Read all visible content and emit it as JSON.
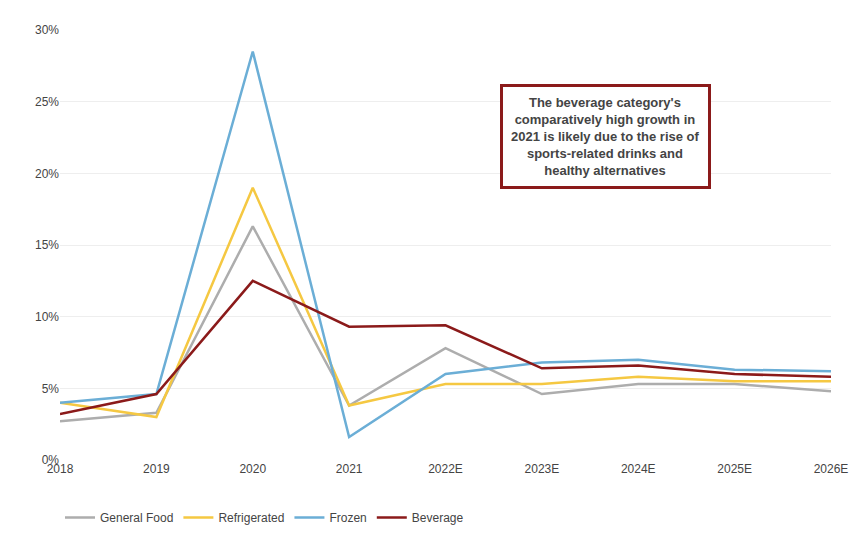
{
  "chart_data": {
    "type": "line",
    "categories": [
      "2018",
      "2019",
      "2020",
      "2021",
      "2022E",
      "2023E",
      "2024E",
      "2025E",
      "2026E"
    ],
    "series": [
      {
        "name": "General Food",
        "color": "#ADADAD",
        "values": [
          0.027,
          0.033,
          0.163,
          0.038,
          0.078,
          0.046,
          0.053,
          0.053,
          0.048
        ]
      },
      {
        "name": "Refrigerated",
        "color": "#F5C842",
        "values": [
          0.04,
          0.03,
          0.19,
          0.038,
          0.053,
          0.053,
          0.058,
          0.055,
          0.055
        ]
      },
      {
        "name": "Frozen",
        "color": "#6BAED6",
        "values": [
          0.04,
          0.046,
          0.285,
          0.016,
          0.06,
          0.068,
          0.07,
          0.063,
          0.062
        ]
      },
      {
        "name": "Beverage",
        "color": "#8B1A1A",
        "values": [
          0.032,
          0.046,
          0.125,
          0.093,
          0.094,
          0.064,
          0.066,
          0.06,
          0.058
        ]
      }
    ],
    "ylim": [
      0,
      0.3
    ],
    "yticks": [
      {
        "value": 0.0,
        "label": "0%"
      },
      {
        "value": 0.05,
        "label": "5%"
      },
      {
        "value": 0.1,
        "label": "10%"
      },
      {
        "value": 0.15,
        "label": "15%"
      },
      {
        "value": 0.2,
        "label": "20%"
      },
      {
        "value": 0.25,
        "label": "25%"
      },
      {
        "value": 0.3,
        "label": "30%"
      }
    ],
    "grid": true,
    "legend": "bottom",
    "annotation": "The beverage category's\ncomparatively high growth in\n2021 is likely due to the rise of\nsports-related drinks and\nhealthy alternatives"
  }
}
